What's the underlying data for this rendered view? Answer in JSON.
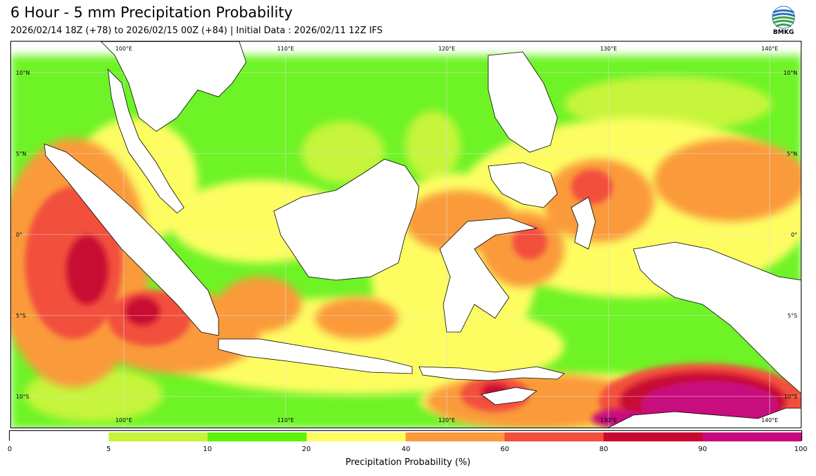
{
  "header": {
    "title": "6 Hour - 5 mm Precipitation Probability",
    "subtitle": "2026/02/14 18Z (+78) to 2026/02/15 00Z (+84) | Initial Data : 2026/02/11 12Z IFS"
  },
  "logo": {
    "text": "BMKG"
  },
  "map": {
    "lon_labels": [
      "100°E",
      "110°E",
      "120°E",
      "130°E",
      "140°E"
    ],
    "lat_labels": [
      "10°N",
      "5°N",
      "0°",
      "5°S",
      "10°S"
    ]
  },
  "legend": {
    "label": "Precipitation Probability (%)",
    "ticks": [
      "0",
      "5",
      "10",
      "20",
      "40",
      "60",
      "80",
      "90",
      "100"
    ],
    "colors": [
      "#ffffff",
      "#c6f53a",
      "#5ef20a",
      "#fdfd62",
      "#fa9a3a",
      "#f2503c",
      "#c80a32",
      "#c8087f"
    ]
  }
}
